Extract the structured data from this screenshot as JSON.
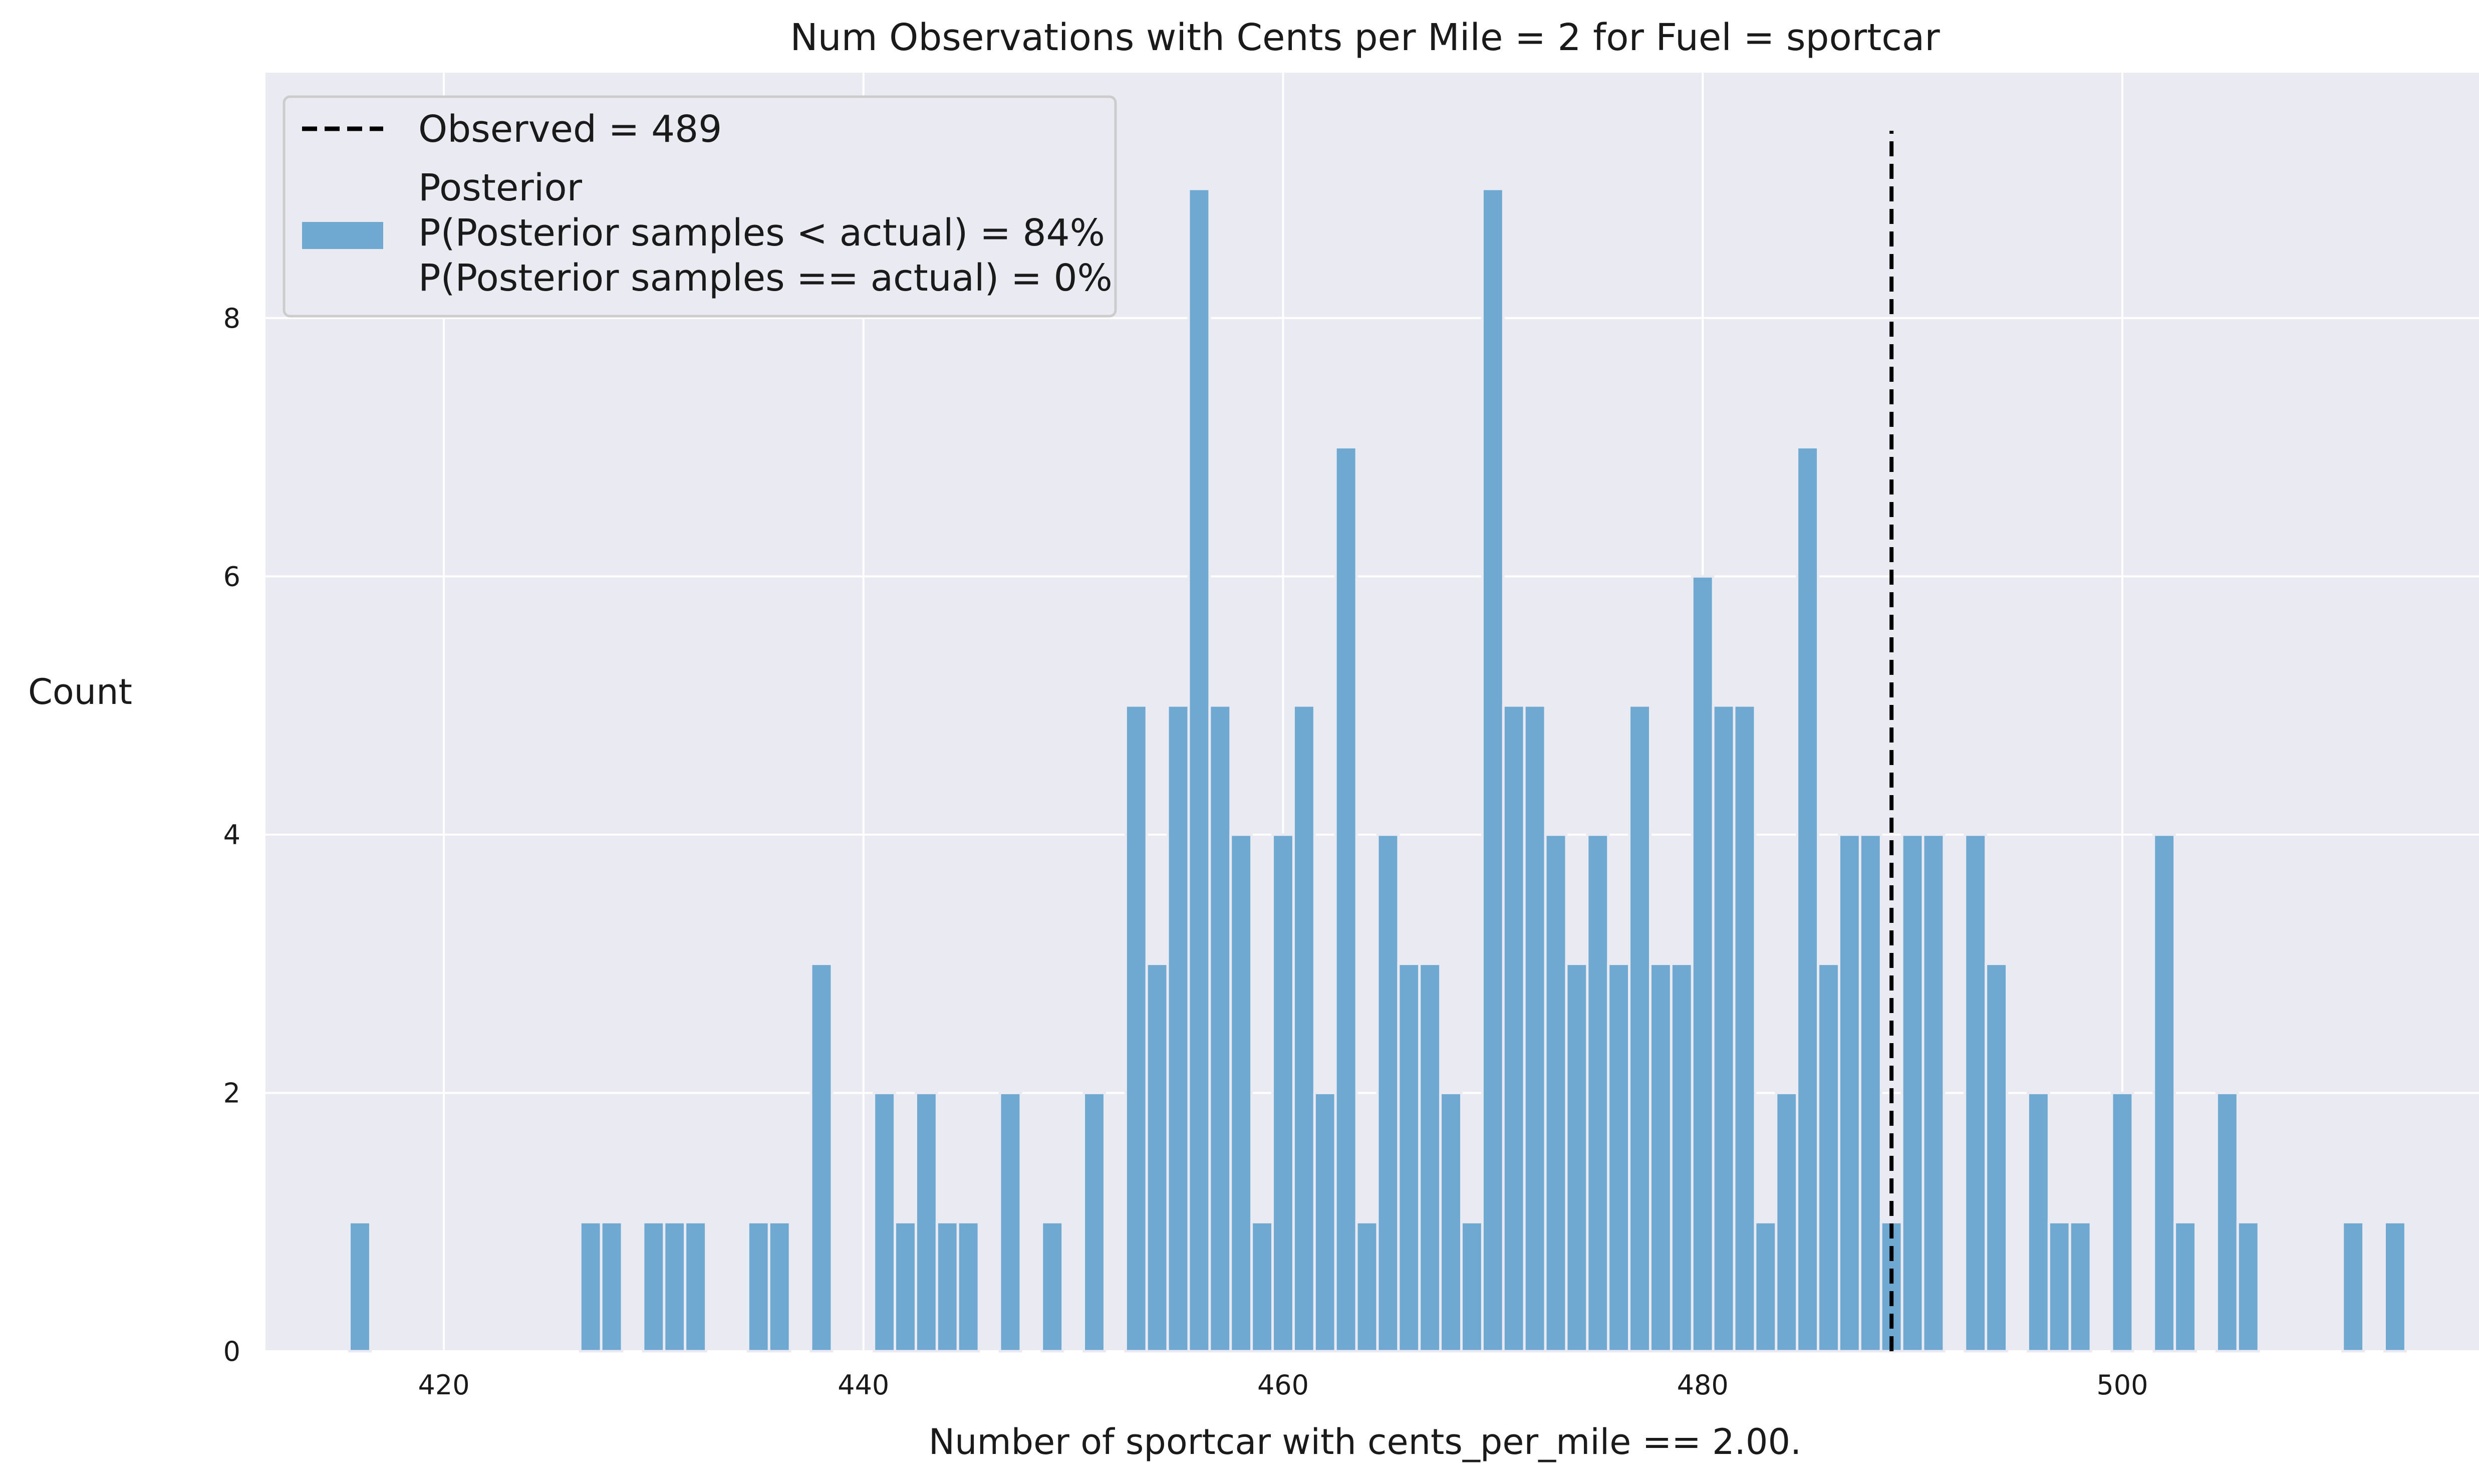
{
  "chart_data": {
    "type": "bar",
    "title": "Num Observations with Cents per Mile = 2 for Fuel = sportcar",
    "xlabel": "Number of sportcar with cents_per_mile == 2.00.",
    "ylabel": "Count",
    "xlim": [
      411.5,
      517
    ],
    "ylim": [
      0,
      9.9
    ],
    "x_ticks": [
      420,
      440,
      460,
      480,
      500
    ],
    "y_ticks": [
      0,
      2,
      4,
      6,
      8
    ],
    "grid": true,
    "legend_position": "top-left",
    "colors": {
      "bars": "#6fa8d0",
      "background": "#eaeaf2",
      "grid": "#ffffff",
      "observed_line": "#000000"
    },
    "observed": {
      "value": 489,
      "label": "Observed = 489"
    },
    "posterior_label_lines": [
      "Posterior",
      "P(Posterior samples < actual) = 84%",
      "P(Posterior samples == actual) = 0%"
    ],
    "bins": {
      "x": [
        416,
        427,
        428,
        430,
        431,
        432,
        435,
        436,
        438,
        441,
        442,
        443,
        444,
        445,
        447,
        449,
        451,
        453,
        454,
        455,
        456,
        457,
        458,
        459,
        460,
        461,
        462,
        463,
        464,
        465,
        466,
        467,
        468,
        469,
        470,
        471,
        472,
        473,
        474,
        475,
        476,
        477,
        478,
        479,
        480,
        481,
        482,
        483,
        484,
        485,
        486,
        487,
        488,
        489,
        490,
        491,
        493,
        494,
        496,
        497,
        498,
        500,
        502,
        503,
        505,
        506,
        511,
        513
      ],
      "counts": [
        1,
        1,
        1,
        1,
        1,
        1,
        1,
        1,
        3,
        2,
        1,
        2,
        1,
        1,
        2,
        1,
        2,
        5,
        3,
        5,
        9,
        5,
        4,
        1,
        4,
        5,
        2,
        7,
        1,
        4,
        3,
        3,
        2,
        1,
        9,
        5,
        5,
        4,
        3,
        4,
        3,
        5,
        3,
        3,
        6,
        5,
        5,
        1,
        2,
        7,
        3,
        4,
        4,
        1,
        4,
        4,
        4,
        3,
        2,
        1,
        1,
        2,
        4,
        1,
        2,
        1,
        1,
        1
      ]
    }
  }
}
